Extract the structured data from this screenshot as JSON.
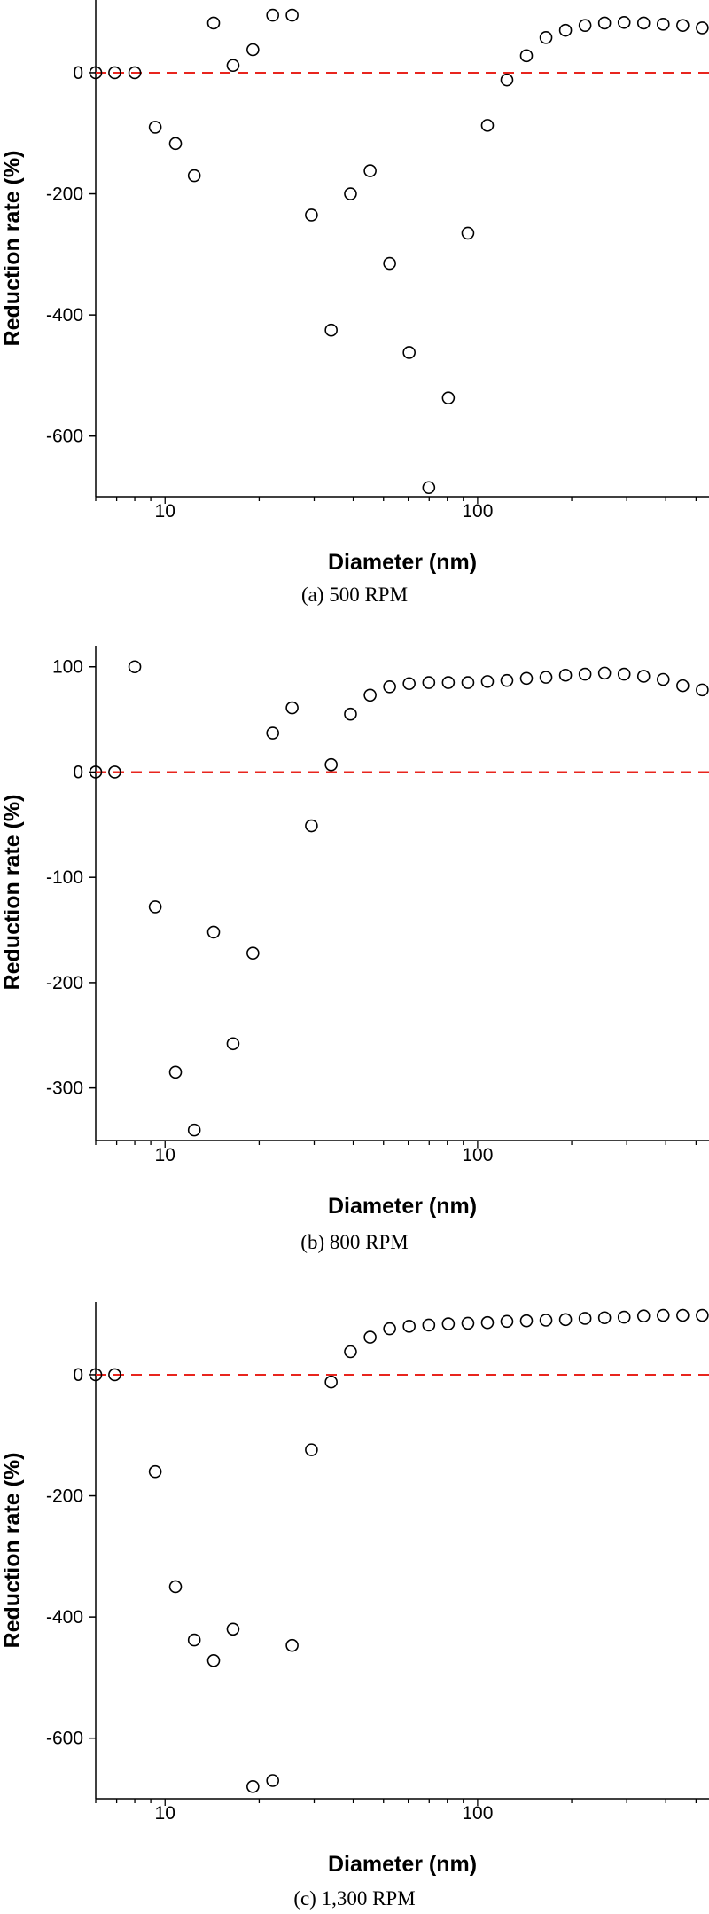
{
  "chart_data": [
    {
      "type": "scatter",
      "caption": "(a) 500 RPM",
      "xlabel": "Diameter (nm)",
      "ylabel": "Reduction rate (%)",
      "xscale": "log",
      "xlim": [
        6,
        550
      ],
      "ylim": [
        -700,
        120
      ],
      "x_ticks": [
        10,
        100
      ],
      "x_tick_labels": [
        "10",
        "100"
      ],
      "y_ticks": [
        0,
        -200,
        -400,
        -600
      ],
      "y_tick_labels": [
        "0",
        "-200",
        "-400",
        "-600"
      ],
      "reference_line": {
        "y": 0,
        "color": "#e8251e",
        "style": "dashed"
      },
      "marker": "open-circle",
      "x": [
        6.0,
        6.9,
        8.0,
        9.3,
        10.8,
        12.4,
        14.3,
        16.5,
        19.1,
        22.1,
        25.5,
        29.4,
        34.0,
        39.2,
        45.3,
        52.3,
        60.4,
        69.8,
        80.6,
        93.1,
        107.5,
        124.1,
        143.3,
        165.5,
        191.1,
        220.7,
        254.8,
        294.3,
        339.8,
        392.4,
        453.2,
        523.3
      ],
      "values": [
        0,
        0,
        0,
        -90,
        -117,
        -170,
        82,
        12,
        38,
        95,
        95,
        -235,
        -425,
        -200,
        -162,
        -315,
        -462,
        -685,
        -537,
        -265,
        -87,
        -12,
        28,
        58,
        70,
        78,
        82,
        83,
        82,
        80,
        78,
        74
      ]
    },
    {
      "type": "scatter",
      "caption": "(b) 800 RPM",
      "xlabel": "Diameter (nm)",
      "ylabel": "Reduction rate (%)",
      "xscale": "log",
      "xlim": [
        6,
        550
      ],
      "ylim": [
        -350,
        120
      ],
      "x_ticks": [
        10,
        100
      ],
      "x_tick_labels": [
        "10",
        "100"
      ],
      "y_ticks": [
        100,
        0,
        -100,
        -200,
        -300
      ],
      "y_tick_labels": [
        "100",
        "0",
        "-100",
        "-200",
        "-300"
      ],
      "reference_line": {
        "y": 0,
        "color": "#e8251e",
        "style": "dashed"
      },
      "marker": "open-circle",
      "x": [
        6.0,
        6.9,
        8.0,
        9.3,
        10.8,
        12.4,
        14.3,
        16.5,
        19.1,
        22.1,
        25.5,
        29.4,
        34.0,
        39.2,
        45.3,
        52.3,
        60.4,
        69.8,
        80.6,
        93.1,
        107.5,
        124.1,
        143.3,
        165.5,
        191.1,
        220.7,
        254.8,
        294.3,
        339.8,
        392.4,
        453.2,
        523.3
      ],
      "values": [
        0,
        0,
        100,
        -128,
        -285,
        -340,
        -152,
        -258,
        -172,
        37,
        61,
        -51,
        7,
        55,
        73,
        81,
        84,
        85,
        85,
        85,
        86,
        87,
        89,
        90,
        92,
        93,
        94,
        93,
        91,
        88,
        82,
        78
      ]
    },
    {
      "type": "scatter",
      "caption": "(c) 1,300 RPM",
      "xlabel": "Diameter (nm)",
      "ylabel": "Reduction rate (%)",
      "xscale": "log",
      "xlim": [
        6,
        550
      ],
      "ylim": [
        -700,
        120
      ],
      "x_ticks": [
        10,
        100
      ],
      "x_tick_labels": [
        "10",
        "100"
      ],
      "y_ticks": [
        0,
        -200,
        -400,
        -600
      ],
      "y_tick_labels": [
        "0",
        "-200",
        "-400",
        "-600"
      ],
      "reference_line": {
        "y": 0,
        "color": "#e8251e",
        "style": "dashed"
      },
      "marker": "open-circle",
      "x": [
        6.0,
        6.9,
        9.3,
        10.8,
        12.4,
        14.3,
        16.5,
        19.1,
        22.1,
        25.5,
        29.4,
        34.0,
        39.2,
        45.3,
        52.3,
        60.4,
        69.8,
        80.6,
        93.1,
        107.5,
        124.1,
        143.3,
        165.5,
        191.1,
        220.7,
        254.8,
        294.3,
        339.8,
        392.4,
        453.2,
        523.3
      ],
      "values": [
        0,
        0,
        -160,
        -350,
        -438,
        -472,
        -420,
        -680,
        -670,
        -447,
        -124,
        -12,
        38,
        62,
        76,
        80,
        82,
        84,
        85,
        86,
        88,
        89,
        90,
        91,
        93,
        94,
        95,
        97,
        98,
        98,
        98
      ]
    }
  ]
}
